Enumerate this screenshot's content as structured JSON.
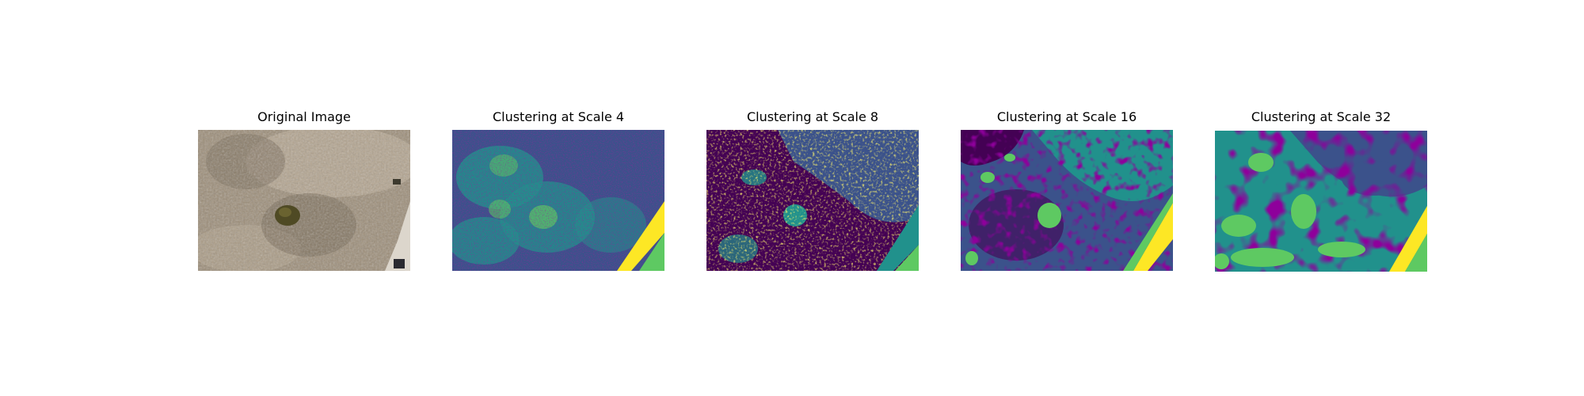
{
  "figure": {
    "panels": [
      {
        "title": "Original Image",
        "kind": "photo"
      },
      {
        "title": "Clustering at Scale 4",
        "kind": "clusters"
      },
      {
        "title": "Clustering at Scale 8",
        "kind": "clusters"
      },
      {
        "title": "Clustering at Scale 16",
        "kind": "clusters"
      },
      {
        "title": "Clustering at Scale 32",
        "kind": "clusters"
      }
    ]
  },
  "colors": {
    "photo_base": "#9d8e79",
    "photo_light": "#bcae98",
    "photo_dark": "#5f5444",
    "tree": "#4f4a24",
    "road": "#dcd6cc",
    "cluster_0": "#440154",
    "cluster_1": "#3b528b",
    "cluster_2": "#21918c",
    "cluster_3": "#5ec962",
    "cluster_4": "#fde725"
  }
}
